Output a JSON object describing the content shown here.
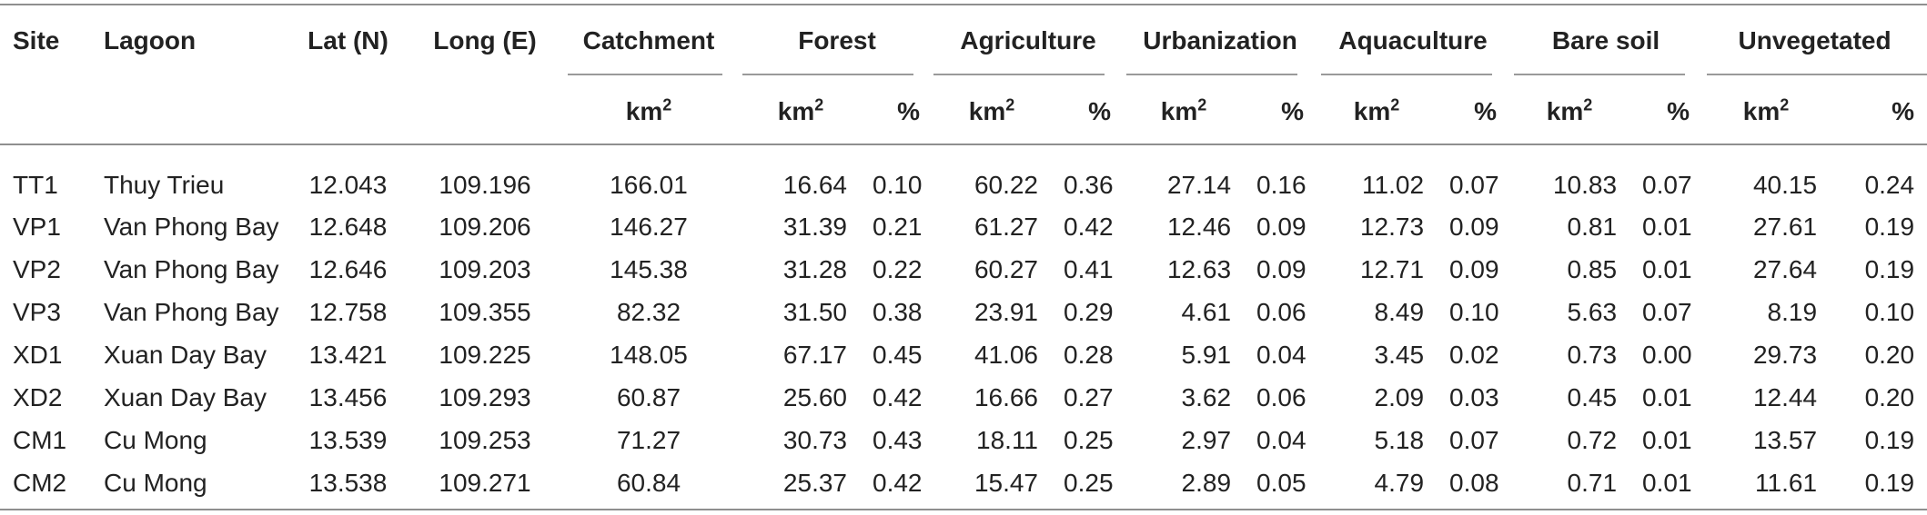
{
  "headers": {
    "site": "Site",
    "lagoon": "Lagoon",
    "lat": "Lat (N)",
    "long": "Long (E)",
    "catchment": "Catchment",
    "forest": "Forest",
    "agriculture": "Agriculture",
    "urbanization": "Urbanization",
    "aquaculture": "Aquaculture",
    "bare_soil": "Bare soil",
    "unvegetated": "Unvegetated"
  },
  "units": {
    "km": "km",
    "sq": "2",
    "pct": "%"
  },
  "rows": [
    [
      "TT1",
      "Thuy Trieu",
      "12.043",
      "109.196",
      "166.01",
      "16.64",
      "0.10",
      "60.22",
      "0.36",
      "27.14",
      "0.16",
      "11.02",
      "0.07",
      "10.83",
      "0.07",
      "40.15",
      "0.24"
    ],
    [
      "VP1",
      "Van Phong Bay",
      "12.648",
      "109.206",
      "146.27",
      "31.39",
      "0.21",
      "61.27",
      "0.42",
      "12.46",
      "0.09",
      "12.73",
      "0.09",
      "0.81",
      "0.01",
      "27.61",
      "0.19"
    ],
    [
      "VP2",
      "Van Phong Bay",
      "12.646",
      "109.203",
      "145.38",
      "31.28",
      "0.22",
      "60.27",
      "0.41",
      "12.63",
      "0.09",
      "12.71",
      "0.09",
      "0.85",
      "0.01",
      "27.64",
      "0.19"
    ],
    [
      "VP3",
      "Van Phong Bay",
      "12.758",
      "109.355",
      "82.32",
      "31.50",
      "0.38",
      "23.91",
      "0.29",
      "4.61",
      "0.06",
      "8.49",
      "0.10",
      "5.63",
      "0.07",
      "8.19",
      "0.10"
    ],
    [
      "XD1",
      "Xuan Day Bay",
      "13.421",
      "109.225",
      "148.05",
      "67.17",
      "0.45",
      "41.06",
      "0.28",
      "5.91",
      "0.04",
      "3.45",
      "0.02",
      "0.73",
      "0.00",
      "29.73",
      "0.20"
    ],
    [
      "XD2",
      "Xuan Day Bay",
      "13.456",
      "109.293",
      "60.87",
      "25.60",
      "0.42",
      "16.66",
      "0.27",
      "3.62",
      "0.06",
      "2.09",
      "0.03",
      "0.45",
      "0.01",
      "12.44",
      "0.20"
    ],
    [
      "CM1",
      "Cu Mong",
      "13.539",
      "109.253",
      "71.27",
      "30.73",
      "0.43",
      "18.11",
      "0.25",
      "2.97",
      "0.04",
      "5.18",
      "0.07",
      "0.72",
      "0.01",
      "13.57",
      "0.19"
    ],
    [
      "CM2",
      "Cu Mong",
      "13.538",
      "109.271",
      "60.84",
      "25.37",
      "0.42",
      "15.47",
      "0.25",
      "2.89",
      "0.05",
      "4.79",
      "0.08",
      "0.71",
      "0.01",
      "11.61",
      "0.19"
    ]
  ]
}
